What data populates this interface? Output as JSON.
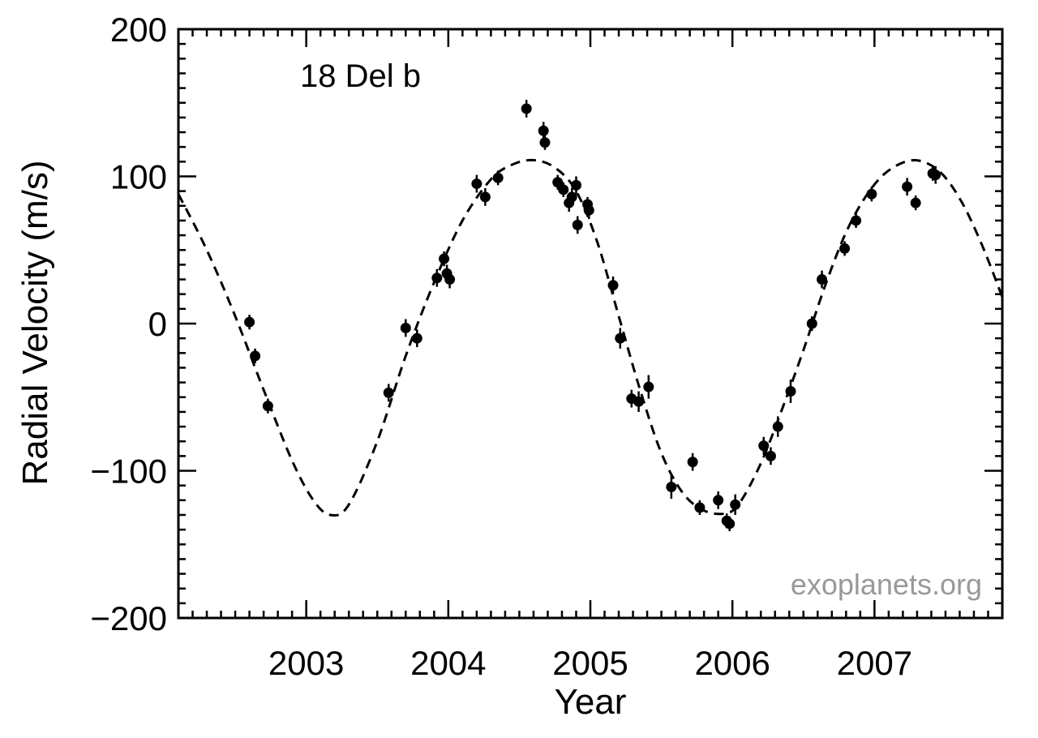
{
  "chart_data": {
    "type": "scatter",
    "annotation": "18 Del b",
    "watermark": "exoplanets.org",
    "xlabel": "Year",
    "ylabel": "Radial Velocity  (m/s)",
    "xlim": [
      2002.1,
      2007.9
    ],
    "ylim": [
      -200,
      200
    ],
    "xticks": [
      2003,
      2004,
      2005,
      2006,
      2007
    ],
    "xtick_labels": [
      "2003",
      "2004",
      "2005",
      "2006",
      "2007"
    ],
    "yticks": [
      -200,
      -100,
      0,
      100,
      200
    ],
    "ytick_labels": [
      "−200",
      "−100",
      "0",
      "100",
      "200"
    ],
    "grid": false,
    "series": [
      {
        "kind": "points_with_error_bars",
        "points": [
          {
            "x": 2002.6,
            "y": 1,
            "err": 5
          },
          {
            "x": 2002.64,
            "y": -22,
            "err": 5
          },
          {
            "x": 2002.73,
            "y": -56,
            "err": 5
          },
          {
            "x": 2003.58,
            "y": -47,
            "err": 6
          },
          {
            "x": 2003.7,
            "y": -3,
            "err": 6
          },
          {
            "x": 2003.78,
            "y": -10,
            "err": 6
          },
          {
            "x": 2003.92,
            "y": 31,
            "err": 6
          },
          {
            "x": 2003.97,
            "y": 44,
            "err": 5
          },
          {
            "x": 2003.99,
            "y": 34,
            "err": 6
          },
          {
            "x": 2004.01,
            "y": 30,
            "err": 6
          },
          {
            "x": 2004.2,
            "y": 95,
            "err": 6
          },
          {
            "x": 2004.26,
            "y": 86,
            "err": 6
          },
          {
            "x": 2004.35,
            "y": 99,
            "err": 5
          },
          {
            "x": 2004.55,
            "y": 146,
            "err": 6
          },
          {
            "x": 2004.67,
            "y": 131,
            "err": 6
          },
          {
            "x": 2004.68,
            "y": 123,
            "err": 5
          },
          {
            "x": 2004.77,
            "y": 96,
            "err": 5
          },
          {
            "x": 2004.81,
            "y": 91,
            "err": 5
          },
          {
            "x": 2004.85,
            "y": 82,
            "err": 6
          },
          {
            "x": 2004.87,
            "y": 86,
            "err": 6
          },
          {
            "x": 2004.9,
            "y": 94,
            "err": 6
          },
          {
            "x": 2004.91,
            "y": 67,
            "err": 6
          },
          {
            "x": 2004.98,
            "y": 81,
            "err": 5
          },
          {
            "x": 2004.99,
            "y": 77,
            "err": 6
          },
          {
            "x": 2005.16,
            "y": 26,
            "err": 6
          },
          {
            "x": 2005.21,
            "y": -10,
            "err": 7
          },
          {
            "x": 2005.29,
            "y": -51,
            "err": 6
          },
          {
            "x": 2005.34,
            "y": -53,
            "err": 7
          },
          {
            "x": 2005.41,
            "y": -43,
            "err": 8
          },
          {
            "x": 2005.57,
            "y": -111,
            "err": 8
          },
          {
            "x": 2005.72,
            "y": -94,
            "err": 6
          },
          {
            "x": 2005.77,
            "y": -125,
            "err": 5
          },
          {
            "x": 2005.9,
            "y": -120,
            "err": 6
          },
          {
            "x": 2005.96,
            "y": -134,
            "err": 5
          },
          {
            "x": 2005.98,
            "y": -136,
            "err": 5
          },
          {
            "x": 2006.02,
            "y": -123,
            "err": 7
          },
          {
            "x": 2006.22,
            "y": -83,
            "err": 6
          },
          {
            "x": 2006.27,
            "y": -90,
            "err": 6
          },
          {
            "x": 2006.32,
            "y": -70,
            "err": 7
          },
          {
            "x": 2006.41,
            "y": -46,
            "err": 8
          },
          {
            "x": 2006.56,
            "y": 0,
            "err": 5
          },
          {
            "x": 2006.63,
            "y": 30,
            "err": 6
          },
          {
            "x": 2006.79,
            "y": 51,
            "err": 5
          },
          {
            "x": 2006.87,
            "y": 70,
            "err": 5
          },
          {
            "x": 2006.98,
            "y": 88,
            "err": 5
          },
          {
            "x": 2007.23,
            "y": 93,
            "err": 6
          },
          {
            "x": 2007.29,
            "y": 82,
            "err": 5
          },
          {
            "x": 2007.41,
            "y": 102,
            "err": 5
          },
          {
            "x": 2007.43,
            "y": 101,
            "err": 6
          }
        ]
      },
      {
        "kind": "model_fit",
        "style": "dashed",
        "points": [
          {
            "x": 2002.1,
            "y": 88
          },
          {
            "x": 2002.3,
            "y": 50
          },
          {
            "x": 2002.5,
            "y": 5
          },
          {
            "x": 2002.7,
            "y": -45
          },
          {
            "x": 2002.9,
            "y": -93
          },
          {
            "x": 2003.05,
            "y": -120
          },
          {
            "x": 2003.17,
            "y": -130
          },
          {
            "x": 2003.3,
            "y": -123
          },
          {
            "x": 2003.5,
            "y": -80
          },
          {
            "x": 2003.7,
            "y": -22
          },
          {
            "x": 2003.9,
            "y": 28
          },
          {
            "x": 2004.1,
            "y": 70
          },
          {
            "x": 2004.3,
            "y": 98
          },
          {
            "x": 2004.45,
            "y": 108
          },
          {
            "x": 2004.6,
            "y": 111
          },
          {
            "x": 2004.75,
            "y": 106
          },
          {
            "x": 2004.9,
            "y": 90
          },
          {
            "x": 2005.05,
            "y": 55
          },
          {
            "x": 2005.2,
            "y": 5
          },
          {
            "x": 2005.35,
            "y": -45
          },
          {
            "x": 2005.5,
            "y": -88
          },
          {
            "x": 2005.65,
            "y": -115
          },
          {
            "x": 2005.8,
            "y": -127
          },
          {
            "x": 2005.95,
            "y": -129
          },
          {
            "x": 2006.05,
            "y": -122
          },
          {
            "x": 2006.2,
            "y": -95
          },
          {
            "x": 2006.35,
            "y": -58
          },
          {
            "x": 2006.5,
            "y": -18
          },
          {
            "x": 2006.65,
            "y": 25
          },
          {
            "x": 2006.8,
            "y": 62
          },
          {
            "x": 2006.95,
            "y": 88
          },
          {
            "x": 2007.1,
            "y": 104
          },
          {
            "x": 2007.28,
            "y": 111
          },
          {
            "x": 2007.45,
            "y": 104
          },
          {
            "x": 2007.6,
            "y": 85
          },
          {
            "x": 2007.75,
            "y": 55
          },
          {
            "x": 2007.9,
            "y": 18
          }
        ]
      }
    ]
  }
}
